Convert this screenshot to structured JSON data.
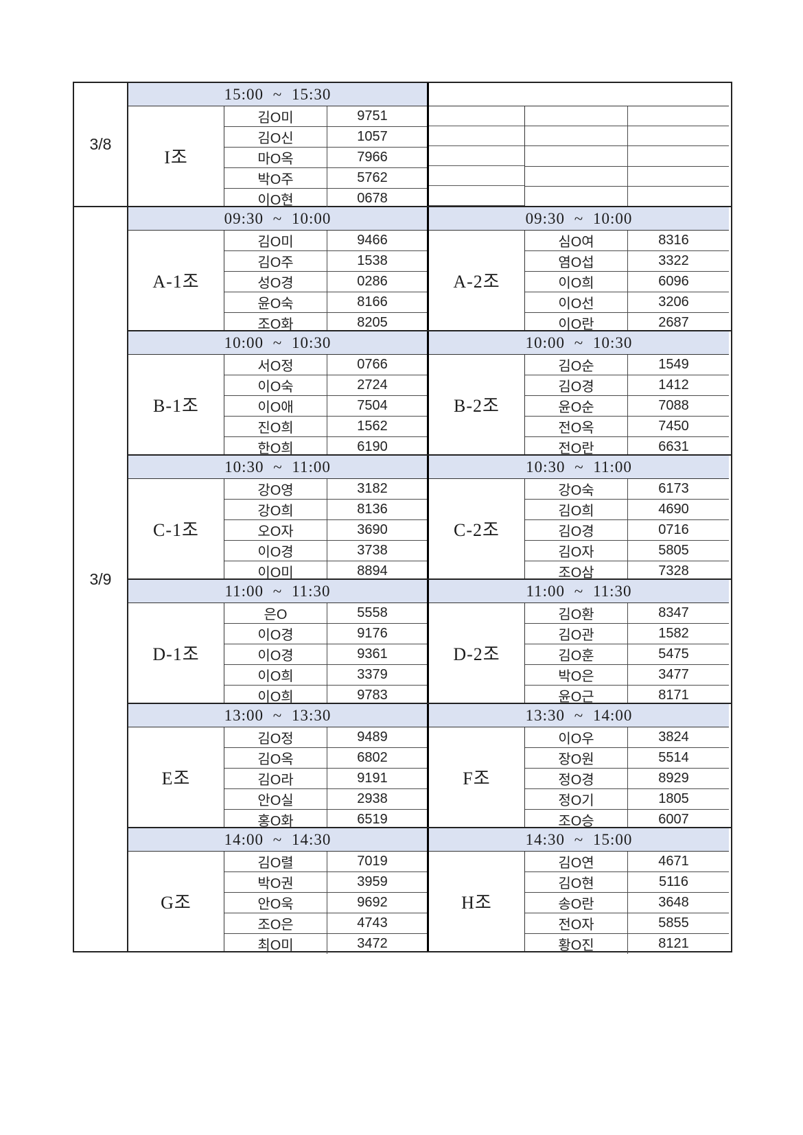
{
  "table": {
    "colors": {
      "header_fill": "#dbe2f2",
      "border_major": "#222222",
      "border_minor": "#4a4a4a",
      "center_divider": "#000000",
      "text": "#1f1f1f"
    },
    "sections": [
      {
        "date": "3/8",
        "blocks": [
          {
            "left": {
              "time": "15:00 ~ 15:30",
              "group": "I조",
              "members": [
                {
                  "name": "김O미",
                  "num": "9751"
                },
                {
                  "name": "김O신",
                  "num": "1057"
                },
                {
                  "name": "마O옥",
                  "num": "7966"
                },
                {
                  "name": "박O주",
                  "num": "5762"
                },
                {
                  "name": "이O현",
                  "num": "0678"
                }
              ]
            },
            "right": {
              "time": "",
              "group": "",
              "members": [
                {
                  "name": "",
                  "num": ""
                },
                {
                  "name": "",
                  "num": ""
                },
                {
                  "name": "",
                  "num": ""
                },
                {
                  "name": "",
                  "num": ""
                },
                {
                  "name": "",
                  "num": ""
                }
              ]
            }
          }
        ]
      },
      {
        "date": "3/9",
        "blocks": [
          {
            "left": {
              "time": "09:30 ~ 10:00",
              "group": "A-1조",
              "members": [
                {
                  "name": "김O미",
                  "num": "9466"
                },
                {
                  "name": "김O주",
                  "num": "1538"
                },
                {
                  "name": "성O경",
                  "num": "0286"
                },
                {
                  "name": "윤O숙",
                  "num": "8166"
                },
                {
                  "name": "조O화",
                  "num": "8205"
                }
              ]
            },
            "right": {
              "time": "09:30 ~ 10:00",
              "group": "A-2조",
              "members": [
                {
                  "name": "심O여",
                  "num": "8316"
                },
                {
                  "name": "염O섭",
                  "num": "3322"
                },
                {
                  "name": "이O희",
                  "num": "6096"
                },
                {
                  "name": "이O선",
                  "num": "3206"
                },
                {
                  "name": "이O란",
                  "num": "2687"
                }
              ]
            }
          },
          {
            "left": {
              "time": "10:00 ~ 10:30",
              "group": "B-1조",
              "members": [
                {
                  "name": "서O정",
                  "num": "0766"
                },
                {
                  "name": "이O숙",
                  "num": "2724"
                },
                {
                  "name": "이O애",
                  "num": "7504"
                },
                {
                  "name": "진O희",
                  "num": "1562"
                },
                {
                  "name": "한O희",
                  "num": "6190"
                }
              ]
            },
            "right": {
              "time": "10:00 ~ 10:30",
              "group": "B-2조",
              "members": [
                {
                  "name": "김O순",
                  "num": "1549"
                },
                {
                  "name": "김O경",
                  "num": "1412"
                },
                {
                  "name": "윤O순",
                  "num": "7088"
                },
                {
                  "name": "전O옥",
                  "num": "7450"
                },
                {
                  "name": "전O란",
                  "num": "6631"
                }
              ]
            }
          },
          {
            "left": {
              "time": "10:30 ~ 11:00",
              "group": "C-1조",
              "members": [
                {
                  "name": "강O영",
                  "num": "3182"
                },
                {
                  "name": "강O희",
                  "num": "8136"
                },
                {
                  "name": "오O자",
                  "num": "3690"
                },
                {
                  "name": "이O경",
                  "num": "3738"
                },
                {
                  "name": "이O미",
                  "num": "8894"
                }
              ]
            },
            "right": {
              "time": "10:30 ~ 11:00",
              "group": "C-2조",
              "members": [
                {
                  "name": "강O숙",
                  "num": "6173"
                },
                {
                  "name": "김O희",
                  "num": "4690"
                },
                {
                  "name": "김O경",
                  "num": "0716"
                },
                {
                  "name": "김O자",
                  "num": "5805"
                },
                {
                  "name": "조O삼",
                  "num": "7328"
                }
              ]
            }
          },
          {
            "left": {
              "time": "11:00 ~ 11:30",
              "group": "D-1조",
              "members": [
                {
                  "name": "은O",
                  "num": "5558"
                },
                {
                  "name": "이O경",
                  "num": "9176"
                },
                {
                  "name": "이O경",
                  "num": "9361"
                },
                {
                  "name": "이O희",
                  "num": "3379"
                },
                {
                  "name": "이O희",
                  "num": "9783"
                }
              ]
            },
            "right": {
              "time": "11:00 ~ 11:30",
              "group": "D-2조",
              "members": [
                {
                  "name": "김O환",
                  "num": "8347"
                },
                {
                  "name": "김O관",
                  "num": "1582"
                },
                {
                  "name": "김O훈",
                  "num": "5475"
                },
                {
                  "name": "박O은",
                  "num": "3477"
                },
                {
                  "name": "윤O근",
                  "num": "8171"
                }
              ]
            }
          },
          {
            "left": {
              "time": "13:00 ~ 13:30",
              "group": "E조",
              "members": [
                {
                  "name": "김O정",
                  "num": "9489"
                },
                {
                  "name": "김O옥",
                  "num": "6802"
                },
                {
                  "name": "김O라",
                  "num": "9191"
                },
                {
                  "name": "안O실",
                  "num": "2938"
                },
                {
                  "name": "홍O화",
                  "num": "6519"
                }
              ]
            },
            "right": {
              "time": "13:30 ~ 14:00",
              "group": "F조",
              "members": [
                {
                  "name": "이O우",
                  "num": "3824"
                },
                {
                  "name": "장O원",
                  "num": "5514"
                },
                {
                  "name": "정O경",
                  "num": "8929"
                },
                {
                  "name": "정O기",
                  "num": "1805"
                },
                {
                  "name": "조O승",
                  "num": "6007"
                }
              ]
            }
          },
          {
            "left": {
              "time": "14:00 ~ 14:30",
              "group": "G조",
              "members": [
                {
                  "name": "김O렬",
                  "num": "7019"
                },
                {
                  "name": "박O권",
                  "num": "3959"
                },
                {
                  "name": "안O욱",
                  "num": "9692"
                },
                {
                  "name": "조O은",
                  "num": "4743"
                },
                {
                  "name": "최O미",
                  "num": "3472"
                }
              ]
            },
            "right": {
              "time": "14:30 ~ 15:00",
              "group": "H조",
              "members": [
                {
                  "name": "김O연",
                  "num": "4671"
                },
                {
                  "name": "김O현",
                  "num": "5116"
                },
                {
                  "name": "송O란",
                  "num": "3648"
                },
                {
                  "name": "전O자",
                  "num": "5855"
                },
                {
                  "name": "황O진",
                  "num": "8121"
                }
              ]
            }
          }
        ]
      }
    ]
  }
}
